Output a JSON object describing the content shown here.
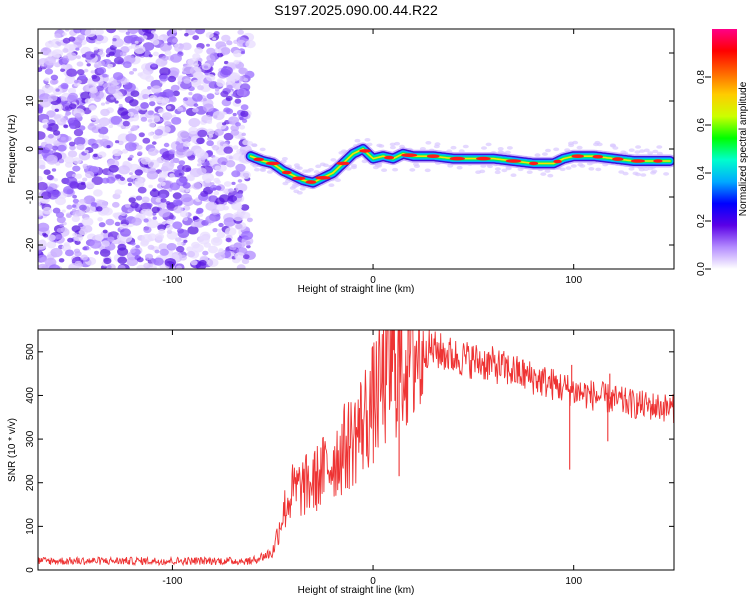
{
  "figure": {
    "title": "S197.2025.090.00.44.R22"
  },
  "chart_data": [
    {
      "type": "heatmap",
      "xlabel": "Height of straight line (km)",
      "ylabel": "Frequency (Hz)",
      "xlim": [
        -167,
        150
      ],
      "ylim": [
        -25,
        25
      ],
      "xticks": [
        -100,
        0,
        100
      ],
      "yticks": [
        -20,
        -10,
        0,
        10,
        20
      ],
      "colorbar": {
        "label": "Normalized spectral amplitude",
        "range": [
          0.0,
          1.0
        ],
        "ticks": [
          0.0,
          0.2,
          0.4,
          0.6,
          0.8
        ],
        "colormap": [
          "#ffffff",
          "#b48cff",
          "#5a00e6",
          "#0000ff",
          "#00aaff",
          "#00ffcc",
          "#00ff00",
          "#ccff00",
          "#ffcc00",
          "#ff6600",
          "#ff0000",
          "#ff0088"
        ]
      },
      "noise_region_x": [
        -167,
        -61
      ],
      "ridge_frequency": {
        "x": [
          -61,
          -55,
          -50,
          -45,
          -40,
          -35,
          -30,
          -25,
          -20,
          -15,
          -10,
          -5,
          0,
          5,
          10,
          15,
          20,
          30,
          40,
          50,
          60,
          70,
          80,
          85,
          90,
          95,
          100,
          110,
          120,
          130,
          140,
          148
        ],
        "y": [
          -1.5,
          -2.5,
          -3.0,
          -4.5,
          -5.5,
          -6.5,
          -7.0,
          -6.0,
          -5.0,
          -3.0,
          -1.0,
          0.0,
          -2.0,
          -1.5,
          -2.0,
          -1.0,
          -1.5,
          -1.5,
          -2.0,
          -2.0,
          -2.0,
          -2.5,
          -3.0,
          -3.0,
          -3.0,
          -2.0,
          -1.5,
          -1.5,
          -2.0,
          -2.5,
          -2.5,
          -2.5
        ]
      }
    },
    {
      "type": "line",
      "xlabel": "Height of straight line (km)",
      "ylabel": "SNR (10 * v/v)",
      "xlim": [
        -167,
        150
      ],
      "ylim": [
        0,
        550
      ],
      "xticks": [
        -100,
        0,
        100
      ],
      "yticks": [
        0,
        100,
        200,
        300,
        400,
        500
      ],
      "line_color": "#ee3333",
      "snr_envelope": {
        "x": [
          -167,
          -60,
          -50,
          -45,
          -40,
          -30,
          -20,
          -10,
          0,
          5,
          10,
          15,
          20,
          25,
          30,
          40,
          50,
          60,
          70,
          80,
          90,
          100,
          110,
          120,
          130,
          140,
          150
        ],
        "y": [
          20,
          22,
          40,
          130,
          180,
          200,
          250,
          300,
          380,
          430,
          470,
          490,
          500,
          510,
          505,
          490,
          480,
          470,
          455,
          440,
          425,
          410,
          400,
          390,
          380,
          375,
          370
        ]
      },
      "spikes": [
        {
          "x": 98,
          "y": 230
        },
        {
          "x": 99,
          "y": 470
        },
        {
          "x": 117,
          "y": 295
        },
        {
          "x": 118,
          "y": 450
        },
        {
          "x": 13,
          "y": 215
        }
      ]
    }
  ]
}
